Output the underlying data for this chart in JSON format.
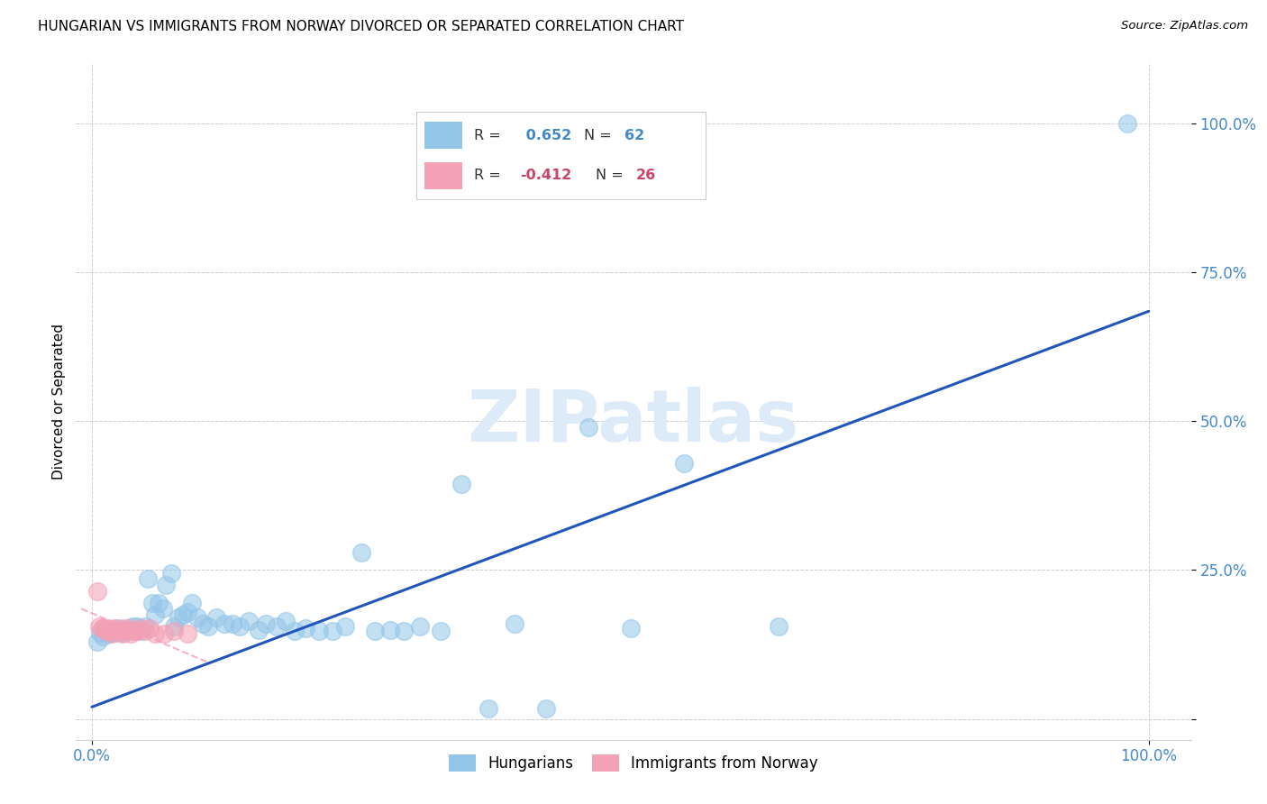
{
  "title": "HUNGARIAN VS IMMIGRANTS FROM NORWAY DIVORCED OR SEPARATED CORRELATION CHART",
  "source": "Source: ZipAtlas.com",
  "ylabel_label": "Divorced or Separated",
  "r1": 0.652,
  "n1": 62,
  "r2": -0.412,
  "n2": 26,
  "legend_label1": "Hungarians",
  "legend_label2": "Immigrants from Norway",
  "color_blue": "#92c5e8",
  "color_pink": "#f4a0b5",
  "line_color_blue": "#2255bb",
  "line_color_pink": "#d06878",
  "tick_color": "#4488cc",
  "watermark_color": "#ddeaf8",
  "background_color": "#ffffff",
  "blue_x": [
    0.005,
    0.008,
    0.01,
    0.013,
    0.015,
    0.018,
    0.02,
    0.022,
    0.025,
    0.027,
    0.03,
    0.032,
    0.035,
    0.038,
    0.04,
    0.043,
    0.046,
    0.05,
    0.053,
    0.057,
    0.06,
    0.063,
    0.067,
    0.07,
    0.075,
    0.078,
    0.082,
    0.086,
    0.09,
    0.095,
    0.1,
    0.105,
    0.11,
    0.118,
    0.125,
    0.133,
    0.14,
    0.148,
    0.158,
    0.165,
    0.175,
    0.183,
    0.192,
    0.202,
    0.215,
    0.228,
    0.24,
    0.255,
    0.268,
    0.282,
    0.295,
    0.31,
    0.33,
    0.35,
    0.375,
    0.4,
    0.43,
    0.47,
    0.51,
    0.56,
    0.65,
    0.98
  ],
  "blue_y": [
    0.13,
    0.145,
    0.138,
    0.15,
    0.143,
    0.148,
    0.15,
    0.145,
    0.152,
    0.148,
    0.145,
    0.15,
    0.148,
    0.155,
    0.15,
    0.155,
    0.148,
    0.155,
    0.235,
    0.195,
    0.175,
    0.195,
    0.185,
    0.225,
    0.245,
    0.155,
    0.17,
    0.175,
    0.18,
    0.195,
    0.17,
    0.16,
    0.155,
    0.17,
    0.16,
    0.16,
    0.155,
    0.165,
    0.15,
    0.16,
    0.155,
    0.165,
    0.148,
    0.152,
    0.148,
    0.148,
    0.155,
    0.28,
    0.148,
    0.15,
    0.148,
    0.155,
    0.148,
    0.395,
    0.018,
    0.16,
    0.018,
    0.49,
    0.152,
    0.43,
    0.155,
    1.0
  ],
  "pink_x": [
    0.005,
    0.007,
    0.009,
    0.011,
    0.013,
    0.015,
    0.017,
    0.019,
    0.021,
    0.023,
    0.025,
    0.027,
    0.029,
    0.031,
    0.033,
    0.035,
    0.037,
    0.04,
    0.043,
    0.046,
    0.05,
    0.055,
    0.06,
    0.068,
    0.078,
    0.09
  ],
  "pink_y": [
    0.215,
    0.155,
    0.152,
    0.152,
    0.148,
    0.152,
    0.148,
    0.143,
    0.152,
    0.15,
    0.148,
    0.148,
    0.143,
    0.152,
    0.148,
    0.152,
    0.143,
    0.148,
    0.148,
    0.152,
    0.148,
    0.152,
    0.143,
    0.143,
    0.148,
    0.143
  ],
  "blue_line_x0": 0.0,
  "blue_line_y0": 0.02,
  "blue_line_x1": 1.0,
  "blue_line_y1": 0.685,
  "pink_line_x0": -0.01,
  "pink_line_y0": 0.185,
  "pink_line_x1": 0.11,
  "pink_line_y1": 0.095,
  "xlim_min": -0.015,
  "xlim_max": 1.04,
  "ylim_min": -0.035,
  "ylim_max": 1.1
}
